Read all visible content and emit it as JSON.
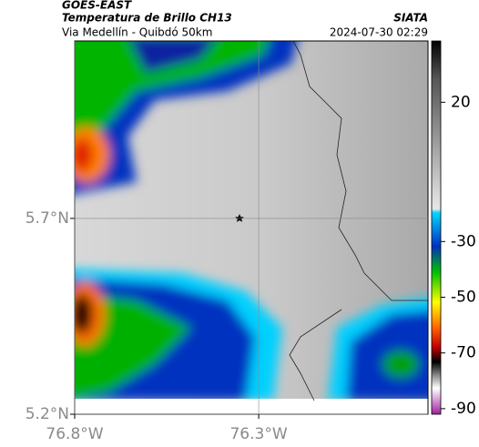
{
  "header": {
    "title": "GOES-EAST",
    "subtitle": "Temperatura de Brillo CH13",
    "route": "Via Medellín - Quibdó 50km",
    "source": "SIATA",
    "timestamp": "2024-07-30 02:29"
  },
  "map": {
    "xlim": [
      -76.8,
      -75.84
    ],
    "ylim": [
      5.2,
      6.153
    ],
    "xticks": [
      {
        "value": -76.8,
        "label": "76.8°W"
      },
      {
        "value": -76.3,
        "label": "76.3°W"
      }
    ],
    "yticks": [
      {
        "value": 5.2,
        "label": "5.2°N"
      },
      {
        "value": 5.7,
        "label": "5.7°N"
      }
    ],
    "grid": true
  },
  "colorbar": {
    "lim": [
      -92,
      42
    ],
    "ticks": [
      20,
      -30,
      -50,
      -70,
      -90
    ]
  }
}
